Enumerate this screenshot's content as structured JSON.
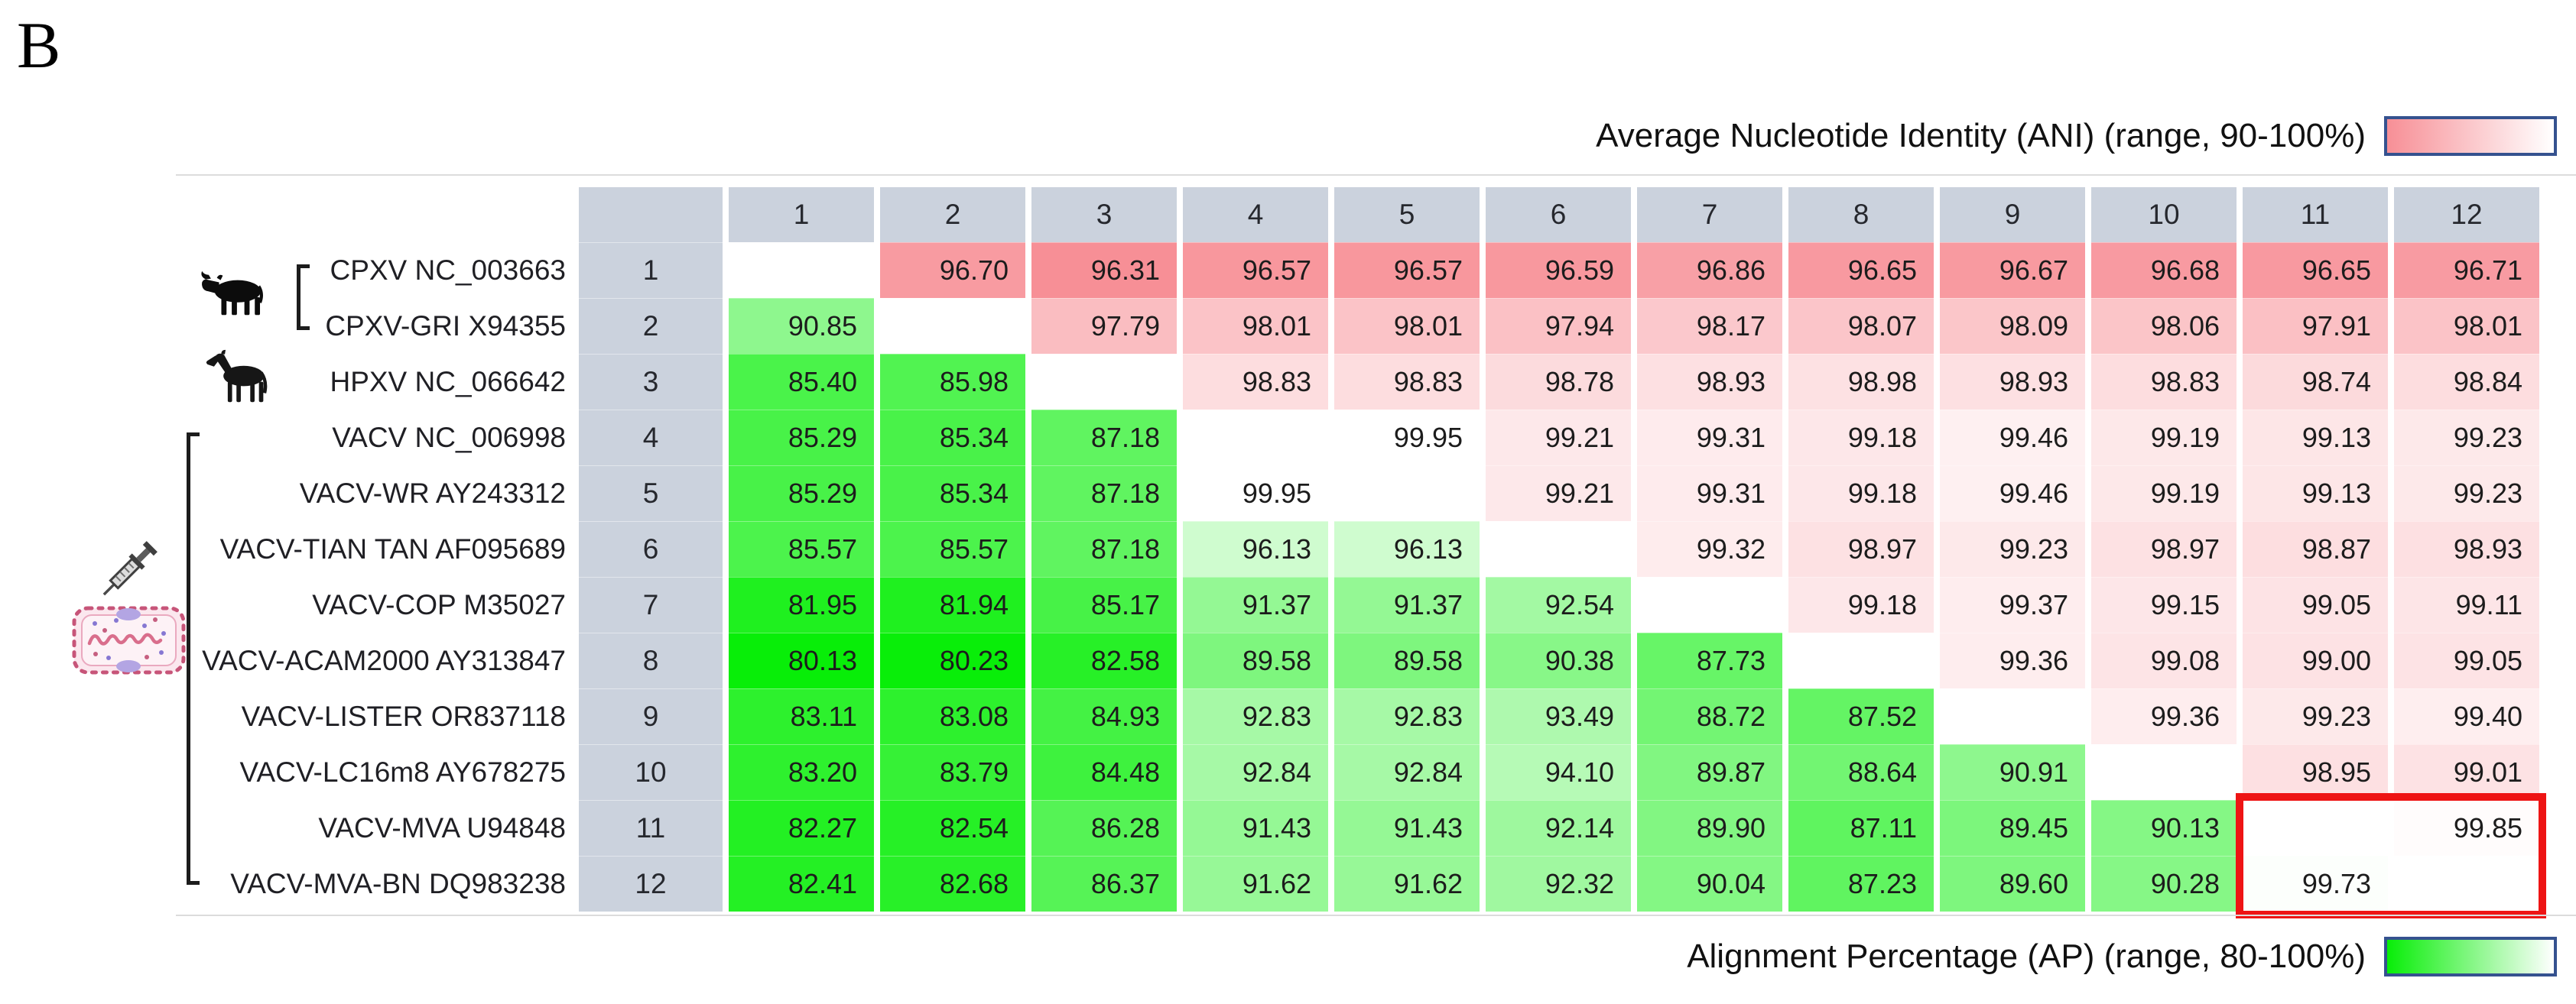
{
  "panel_label": "B",
  "legends": {
    "top": {
      "label": "Average Nucleotide Identity (ANI) (range, 90-100%)"
    },
    "bottom": {
      "label": "Alignment Percentage (AP) (range, 80-100%)"
    }
  },
  "colors": {
    "ani_base_pink": "#f78f96",
    "ap_base_green": "#08ee08",
    "header_bg": "#cbd2dd",
    "diagonal_bg": "#ffffff",
    "highlight_red": "#ee1414",
    "legend_border_blue": "#35528f",
    "rule_gray": "#dcdcdc"
  },
  "hosts": [
    {
      "name": "cow",
      "icon": "cow-icon",
      "applies_to_rows": "1-2"
    },
    {
      "name": "horse",
      "icon": "horse-icon",
      "applies_to_rows": "3"
    },
    {
      "name": "vaccine-cell",
      "icon": "syringe-cell-icon",
      "applies_to_rows": "4-12"
    }
  ],
  "chart_data": {
    "type": "heatmap",
    "upper_triangle_metric": "ANI",
    "lower_triangle_metric": "AP",
    "ani_range": [
      90,
      100
    ],
    "ap_range": [
      80,
      100
    ],
    "row_indices": [
      1,
      2,
      3,
      4,
      5,
      6,
      7,
      8,
      9,
      10,
      11,
      12
    ],
    "col_indices": [
      1,
      2,
      3,
      4,
      5,
      6,
      7,
      8,
      9,
      10,
      11,
      12
    ],
    "taxa": [
      "CPXV NC_003663",
      "CPXV-GRI X94355",
      "HPXV NC_066642",
      "VACV NC_006998",
      "VACV-WR AY243312",
      "VACV-TIAN TAN AF095689",
      "VACV-COP M35027",
      "VACV-ACAM2000 AY313847",
      "VACV-LISTER OR837118",
      "VACV-LC16m8 AY678275",
      "VACV-MVA U94848",
      "VACV-MVA-BN DQ983238"
    ],
    "values": [
      [
        null,
        96.7,
        96.31,
        96.57,
        96.57,
        96.59,
        96.86,
        96.65,
        96.67,
        96.68,
        96.65,
        96.71
      ],
      [
        90.85,
        null,
        97.79,
        98.01,
        98.01,
        97.94,
        98.17,
        98.07,
        98.09,
        98.06,
        97.91,
        98.01
      ],
      [
        85.4,
        85.98,
        null,
        98.83,
        98.83,
        98.78,
        98.93,
        98.98,
        98.93,
        98.83,
        98.74,
        98.84
      ],
      [
        85.29,
        85.34,
        87.18,
        null,
        99.95,
        99.21,
        99.31,
        99.18,
        99.46,
        99.19,
        99.13,
        99.23
      ],
      [
        85.29,
        85.34,
        87.18,
        99.95,
        null,
        99.21,
        99.31,
        99.18,
        99.46,
        99.19,
        99.13,
        99.23
      ],
      [
        85.57,
        85.57,
        87.18,
        96.13,
        96.13,
        null,
        99.32,
        98.97,
        99.23,
        98.97,
        98.87,
        98.93
      ],
      [
        81.95,
        81.94,
        85.17,
        91.37,
        91.37,
        92.54,
        null,
        99.18,
        99.37,
        99.15,
        99.05,
        99.11
      ],
      [
        80.13,
        80.23,
        82.58,
        89.58,
        89.58,
        90.38,
        87.73,
        null,
        99.36,
        99.08,
        99.0,
        99.05
      ],
      [
        83.11,
        83.08,
        84.93,
        92.83,
        92.83,
        93.49,
        88.72,
        87.52,
        null,
        99.36,
        99.23,
        99.4
      ],
      [
        83.2,
        83.79,
        84.48,
        92.84,
        92.84,
        94.1,
        89.87,
        88.64,
        90.91,
        null,
        98.95,
        99.01
      ],
      [
        82.27,
        82.54,
        86.28,
        91.43,
        91.43,
        92.14,
        89.9,
        87.11,
        89.45,
        90.13,
        null,
        99.85
      ],
      [
        82.41,
        82.68,
        86.37,
        91.62,
        91.62,
        92.32,
        90.04,
        87.23,
        89.6,
        90.28,
        99.73,
        null
      ]
    ],
    "highlight_box": {
      "rows": [
        11,
        12
      ],
      "cols": [
        11,
        12
      ]
    }
  }
}
